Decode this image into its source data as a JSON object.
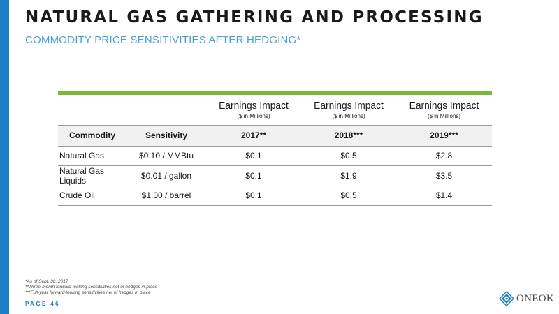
{
  "header": {
    "title": "NATURAL GAS GATHERING AND PROCESSING",
    "subtitle": "COMMODITY PRICE SENSITIVITIES AFTER HEDGING*"
  },
  "table": {
    "impact_headers": [
      {
        "title": "Earnings Impact",
        "sub": "($ in Millions)"
      },
      {
        "title": "Earnings Impact",
        "sub": "($ in Millions)"
      },
      {
        "title": "Earnings Impact",
        "sub": "($ in Millions)"
      }
    ],
    "columns": [
      "Commodity",
      "Sensitivity",
      "2017**",
      "2018***",
      "2019***"
    ],
    "rows": [
      [
        "Natural Gas",
        "$0.10 / MMBtu",
        "$0.1",
        "$0.5",
        "$2.8"
      ],
      [
        "Natural Gas Liquids",
        "$0.01 / gallon",
        "$0.1",
        "$1.9",
        "$3.5"
      ],
      [
        "Crude Oil",
        "$1.00 / barrel",
        "$0.1",
        "$0.5",
        "$1.4"
      ]
    ]
  },
  "footnotes": [
    "*As of Sept. 30, 2017",
    "**Three-month forward-looking sensitivities net of hedges in place",
    "***Full-year forward-looking sensitivities net of hedges in place"
  ],
  "footer": {
    "page_label": "PAGE 46",
    "logo_text": "ONEOK"
  },
  "colors": {
    "accent_blue": "#1a7fc4",
    "subtitle_blue": "#4c9fd6",
    "rule_green": "#7bb83a"
  },
  "icons": {
    "logo": "oneok-diamond-logo-icon"
  }
}
